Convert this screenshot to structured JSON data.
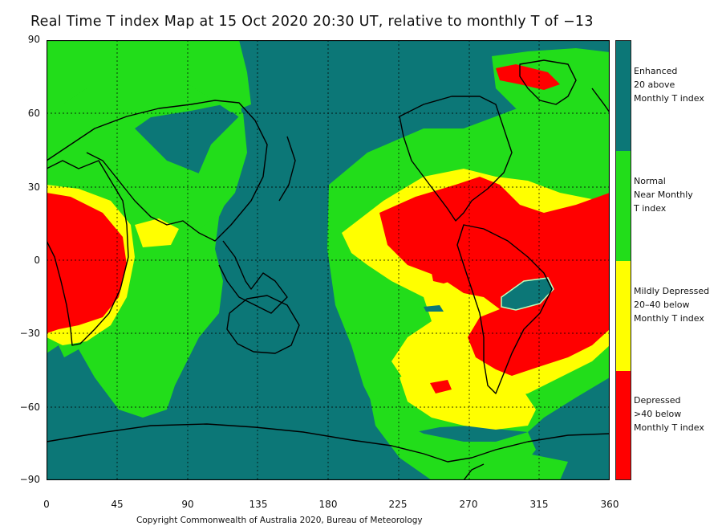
{
  "title": "Real Time T index Map at 15 Oct 2020 20:30 UT, relative to monthly T of −13",
  "copyright": "Copyright Commonwealth of Australia 2020, Bureau of Meteorology",
  "axes": {
    "y_ticks": [
      "90",
      "60",
      "30",
      "0",
      "−30",
      "−60",
      "−90"
    ],
    "x_ticks": [
      "0",
      "45",
      "90",
      "135",
      "180",
      "225",
      "270",
      "315",
      "360"
    ]
  },
  "colors": {
    "enhanced": "#0c7777",
    "normal": "#22dd1a",
    "mildly_depressed": "#ffff00",
    "depressed": "#ff0000"
  },
  "legend": [
    {
      "key": "enhanced",
      "label": "Enhanced\n20 above\nMonthly T index"
    },
    {
      "key": "normal",
      "label": "Normal\nNear Monthly\nT index"
    },
    {
      "key": "mildly_depressed",
      "label": "Mildly Depressed\n20–40 below\nMonthly T index"
    },
    {
      "key": "depressed",
      "label": "Depressed\n>40 below\nMonthly T index"
    }
  ]
}
